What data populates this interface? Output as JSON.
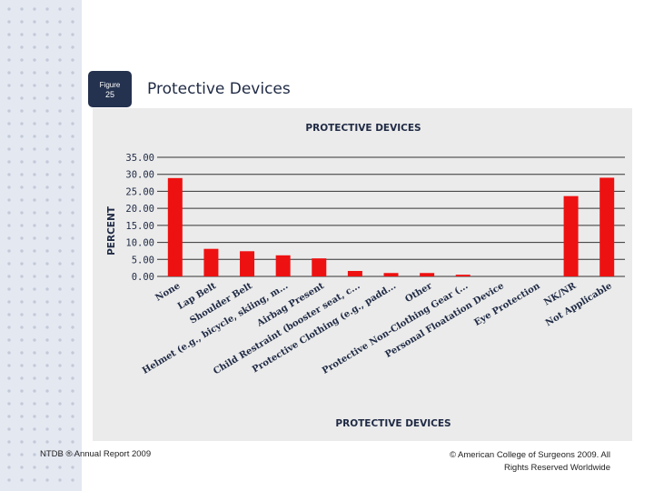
{
  "slide": {
    "figure_label": "Figure",
    "figure_number": "25",
    "title": "Protective Devices"
  },
  "footer": {
    "left": "NTDB ® Annual Report 2009",
    "right_line1": "© American College of Surgeons 2009.  All",
    "right_line2": "Rights Reserved Worldwide"
  },
  "colors": {
    "bar": "#ee1111",
    "chart_bg": "#ebebeb",
    "grid": "#333333",
    "text": "#1f2a44"
  },
  "chart_data": {
    "type": "bar",
    "title": "PROTECTIVE DEVICES",
    "xlabel": "PROTECTIVE DEVICES",
    "ylabel": "PERCENT",
    "ylim": [
      0,
      35
    ],
    "yticks": [
      "35.00",
      "30.00",
      "25.00",
      "20.00",
      "15.00",
      "10.00",
      "5.00",
      "0.00"
    ],
    "grid": true,
    "categories": [
      "None",
      "Lap Belt",
      "Shoulder Belt",
      "Helmet (e.g., bicycle, skiing, m...",
      "Airbag Present",
      "Child Restraint (booster seat, c...",
      "Protective Clothing (e.g., padd...",
      "Other",
      "Protective Non-Clothing Gear (...",
      "Personal Floatation Device",
      "Eye Protection",
      "NK/NR",
      "Not Applicable"
    ],
    "values": [
      28.9,
      8.1,
      7.4,
      6.2,
      5.3,
      1.6,
      1.0,
      1.0,
      0.5,
      0,
      0,
      23.6,
      29.0
    ]
  }
}
